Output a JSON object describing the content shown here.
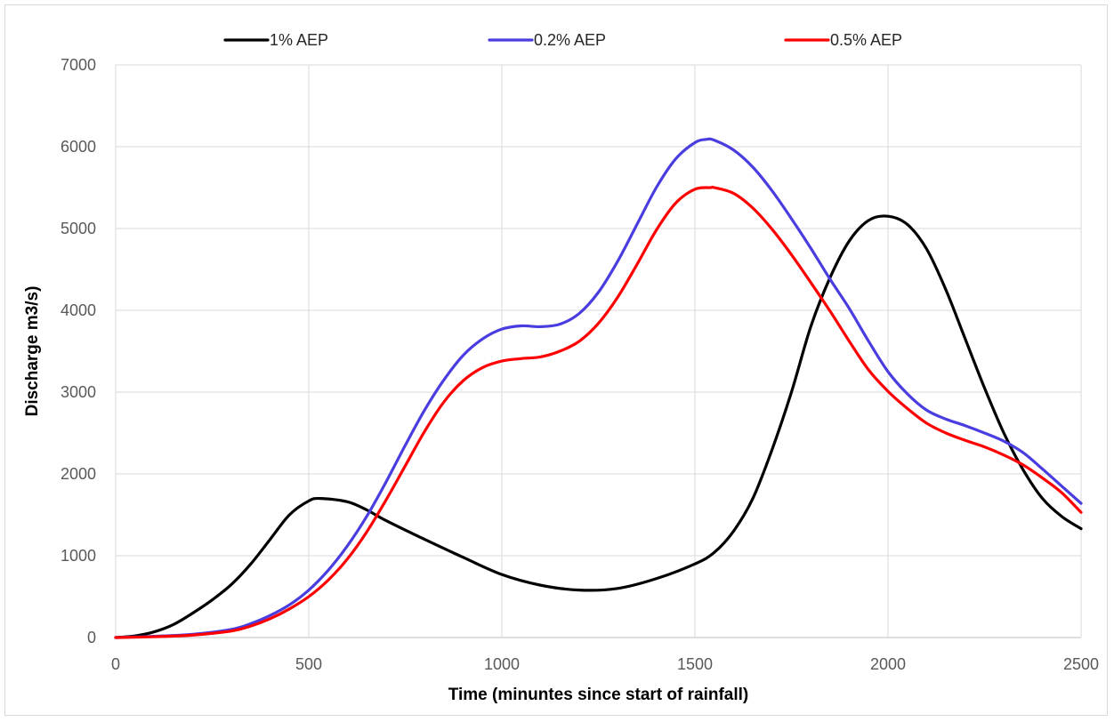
{
  "chart_data": {
    "type": "line",
    "title": "",
    "xlabel": "Time (minuntes since start of rainfall)",
    "ylabel": "Discharge m3/s)",
    "xlim": [
      0,
      2500
    ],
    "ylim": [
      0,
      7000
    ],
    "xticks": [
      "0",
      "500",
      "1000",
      "1500",
      "2000",
      "2500"
    ],
    "yticks": [
      "0",
      "1000",
      "2000",
      "3000",
      "4000",
      "5000",
      "6000",
      "7000"
    ],
    "grid": true,
    "legend_position": "top",
    "series": [
      {
        "name": "1% AEP",
        "color": "#000000",
        "x": [
          0,
          50,
          100,
          150,
          200,
          250,
          300,
          350,
          400,
          450,
          500,
          530,
          600,
          650,
          700,
          800,
          900,
          1000,
          1100,
          1200,
          1300,
          1400,
          1500,
          1550,
          1600,
          1650,
          1700,
          1750,
          1800,
          1850,
          1900,
          1950,
          2000,
          2050,
          2100,
          2150,
          2200,
          2250,
          2300,
          2350,
          2400,
          2450,
          2500
        ],
        "y": [
          0,
          20,
          70,
          160,
          300,
          460,
          650,
          900,
          1200,
          1500,
          1670,
          1700,
          1660,
          1560,
          1430,
          1200,
          980,
          770,
          640,
          580,
          600,
          720,
          900,
          1040,
          1300,
          1700,
          2300,
          3000,
          3800,
          4400,
          4850,
          5100,
          5150,
          5050,
          4750,
          4250,
          3650,
          3050,
          2500,
          2050,
          1700,
          1480,
          1330
        ]
      },
      {
        "name": "0.2% AEP",
        "color": "#4a3de0",
        "x": [
          0,
          100,
          200,
          300,
          350,
          400,
          450,
          500,
          550,
          600,
          650,
          700,
          750,
          800,
          850,
          900,
          950,
          1000,
          1050,
          1100,
          1150,
          1200,
          1250,
          1300,
          1350,
          1400,
          1450,
          1500,
          1530,
          1550,
          1600,
          1650,
          1700,
          1750,
          1800,
          1850,
          1900,
          1950,
          2000,
          2050,
          2100,
          2150,
          2200,
          2250,
          2300,
          2350,
          2400,
          2450,
          2500
        ],
        "y": [
          0,
          15,
          40,
          100,
          170,
          270,
          400,
          580,
          820,
          1120,
          1480,
          1900,
          2350,
          2780,
          3150,
          3450,
          3650,
          3770,
          3810,
          3800,
          3830,
          3960,
          4220,
          4600,
          5050,
          5500,
          5850,
          6050,
          6090,
          6080,
          5960,
          5750,
          5460,
          5120,
          4760,
          4380,
          4020,
          3620,
          3250,
          2980,
          2780,
          2670,
          2590,
          2500,
          2400,
          2260,
          2060,
          1850,
          1640
        ]
      },
      {
        "name": "0.5% AEP",
        "color": "#ff0000",
        "x": [
          0,
          100,
          200,
          300,
          350,
          400,
          450,
          500,
          550,
          600,
          650,
          700,
          750,
          800,
          850,
          900,
          950,
          1000,
          1050,
          1100,
          1150,
          1200,
          1250,
          1300,
          1350,
          1400,
          1450,
          1500,
          1540,
          1550,
          1600,
          1650,
          1700,
          1750,
          1800,
          1850,
          1900,
          1950,
          2000,
          2050,
          2100,
          2150,
          2200,
          2250,
          2300,
          2350,
          2400,
          2450,
          2500
        ],
        "y": [
          0,
          10,
          30,
          80,
          140,
          230,
          350,
          500,
          700,
          960,
          1290,
          1680,
          2100,
          2520,
          2880,
          3140,
          3300,
          3380,
          3410,
          3430,
          3500,
          3620,
          3840,
          4160,
          4560,
          4980,
          5310,
          5480,
          5500,
          5500,
          5430,
          5250,
          4990,
          4680,
          4340,
          3990,
          3620,
          3270,
          3010,
          2800,
          2620,
          2500,
          2410,
          2330,
          2230,
          2110,
          1950,
          1770,
          1530
        ]
      }
    ]
  }
}
